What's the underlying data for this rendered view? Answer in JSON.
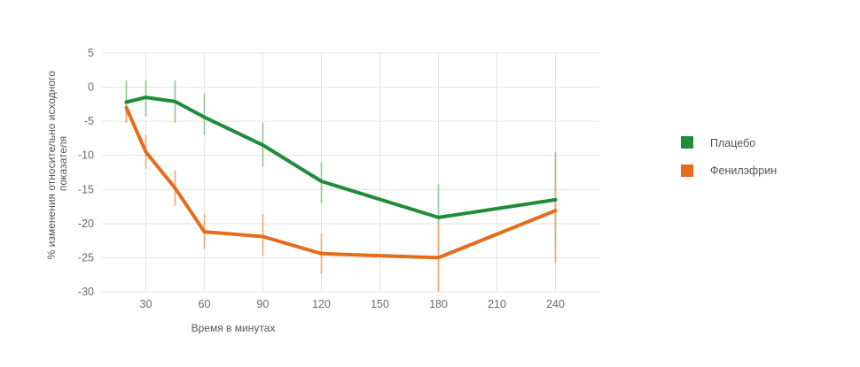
{
  "chart_data": {
    "type": "line",
    "xlabel": "Время в минутах",
    "ylabel_lines": [
      "% изменения относительно исходного",
      "показателя"
    ],
    "x_ticks": [
      30,
      60,
      90,
      120,
      150,
      180,
      210,
      240
    ],
    "y_ticks": [
      5,
      0,
      -5,
      -10,
      -15,
      -20,
      -25,
      -30
    ],
    "xlim": [
      7.5,
      262.5
    ],
    "ylim": [
      -30,
      5
    ],
    "grid": true,
    "legend_position": "right",
    "series": [
      {
        "name": "Плацебо",
        "color": "#1e8c3a",
        "errorbar_color": "#8ec48f",
        "x": [
          20,
          30,
          45,
          60,
          90,
          120,
          180,
          240
        ],
        "y": [
          -2.2,
          -1.5,
          -2.1,
          -4.4,
          -8.5,
          -13.8,
          -19.1,
          -16.5
        ],
        "err_low": [
          -5.2,
          -4.3,
          -5.2,
          -7.0,
          -11.6,
          -17.0,
          -24.0,
          -23.5
        ],
        "err_high": [
          1.0,
          1.0,
          1.0,
          -1.0,
          -5.2,
          -11.0,
          -14.2,
          -9.5
        ]
      },
      {
        "name": "Фенилэфрин",
        "color": "#e56c1c",
        "errorbar_color": "#f4a46b",
        "x": [
          20,
          30,
          45,
          60,
          90,
          120,
          180,
          240
        ],
        "y": [
          -3.0,
          -9.5,
          -14.8,
          -21.2,
          -21.9,
          -24.4,
          -25.0,
          -18.1
        ],
        "err_low": [
          -5.2,
          -12.0,
          -17.4,
          -23.7,
          -24.7,
          -27.4,
          -30.0,
          -25.8
        ],
        "err_high": [
          -2.8,
          -7.0,
          -12.2,
          -18.6,
          -18.6,
          -21.5,
          -20.0,
          -10.5
        ]
      }
    ]
  }
}
